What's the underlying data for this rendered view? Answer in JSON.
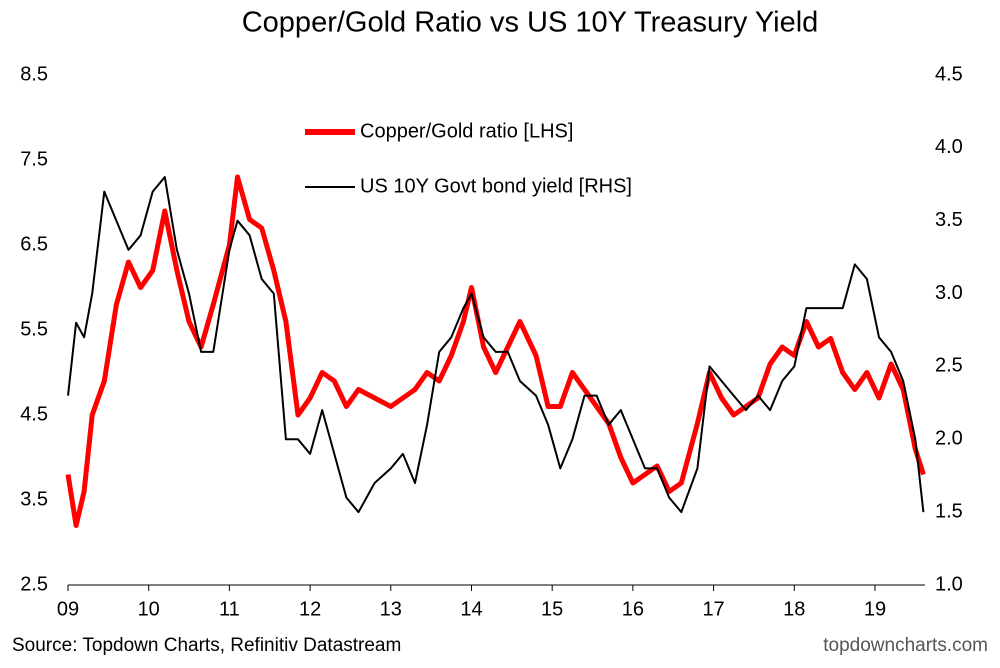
{
  "chart_data": {
    "type": "line",
    "title": "Copper/Gold Ratio vs US 10Y Treasury Yield",
    "source": "Source: Topdown Charts, Refinitiv Datastream",
    "watermark": "topdowncharts.com",
    "x": [
      2009.0,
      2009.1,
      2009.2,
      2009.3,
      2009.45,
      2009.6,
      2009.75,
      2009.9,
      2010.05,
      2010.2,
      2010.35,
      2010.5,
      2010.65,
      2010.8,
      2011.0,
      2011.1,
      2011.25,
      2011.4,
      2011.55,
      2011.7,
      2011.85,
      2012.0,
      2012.15,
      2012.3,
      2012.45,
      2012.6,
      2012.8,
      2013.0,
      2013.15,
      2013.3,
      2013.45,
      2013.6,
      2013.75,
      2013.9,
      2014.0,
      2014.15,
      2014.3,
      2014.45,
      2014.6,
      2014.8,
      2014.95,
      2015.1,
      2015.25,
      2015.4,
      2015.55,
      2015.7,
      2015.85,
      2016.0,
      2016.15,
      2016.3,
      2016.45,
      2016.6,
      2016.8,
      2016.95,
      2017.1,
      2017.25,
      2017.4,
      2017.55,
      2017.7,
      2017.85,
      2018.0,
      2018.15,
      2018.3,
      2018.45,
      2018.6,
      2018.75,
      2018.9,
      2019.05,
      2019.2,
      2019.35,
      2019.5,
      2019.6
    ],
    "series": [
      {
        "name": "Copper/Gold ratio [LHS]",
        "color": "#ff0000",
        "axis": "y",
        "values": [
          3.8,
          3.2,
          3.6,
          4.5,
          4.9,
          5.8,
          6.3,
          6.0,
          6.2,
          6.9,
          6.2,
          5.6,
          5.3,
          5.8,
          6.5,
          7.3,
          6.8,
          6.7,
          6.2,
          5.6,
          4.5,
          4.7,
          5.0,
          4.9,
          4.6,
          4.8,
          4.7,
          4.6,
          4.7,
          4.8,
          5.0,
          4.9,
          5.2,
          5.6,
          6.0,
          5.3,
          5.0,
          5.3,
          5.6,
          5.2,
          4.6,
          4.6,
          5.0,
          4.8,
          4.6,
          4.4,
          4.0,
          3.7,
          3.8,
          3.9,
          3.6,
          3.7,
          4.4,
          5.0,
          4.7,
          4.5,
          4.6,
          4.7,
          5.1,
          5.3,
          5.2,
          5.6,
          5.3,
          5.4,
          5.0,
          4.8,
          5.0,
          4.7,
          5.1,
          4.8,
          4.1,
          3.8
        ]
      },
      {
        "name": "US 10Y Govt bond yield [RHS]",
        "color": "#000000",
        "axis": "y2",
        "values": [
          2.3,
          2.8,
          2.7,
          3.0,
          3.7,
          3.5,
          3.3,
          3.4,
          3.7,
          3.8,
          3.3,
          3.0,
          2.6,
          2.6,
          3.3,
          3.5,
          3.4,
          3.1,
          3.0,
          2.0,
          2.0,
          1.9,
          2.2,
          1.9,
          1.6,
          1.5,
          1.7,
          1.8,
          1.9,
          1.7,
          2.1,
          2.6,
          2.7,
          2.9,
          3.0,
          2.7,
          2.6,
          2.6,
          2.4,
          2.3,
          2.1,
          1.8,
          2.0,
          2.3,
          2.3,
          2.1,
          2.2,
          2.0,
          1.8,
          1.8,
          1.6,
          1.5,
          1.8,
          2.5,
          2.4,
          2.3,
          2.2,
          2.3,
          2.2,
          2.4,
          2.5,
          2.9,
          2.9,
          2.9,
          2.9,
          3.2,
          3.1,
          2.7,
          2.6,
          2.4,
          2.0,
          1.5
        ]
      }
    ],
    "xlim": [
      2009,
      2019.62
    ],
    "xticks": [
      {
        "value": 2009,
        "label": "09"
      },
      {
        "value": 2010,
        "label": "10"
      },
      {
        "value": 2011,
        "label": "11"
      },
      {
        "value": 2012,
        "label": "12"
      },
      {
        "value": 2013,
        "label": "13"
      },
      {
        "value": 2014,
        "label": "14"
      },
      {
        "value": 2015,
        "label": "15"
      },
      {
        "value": 2016,
        "label": "16"
      },
      {
        "value": 2017,
        "label": "17"
      },
      {
        "value": 2018,
        "label": "18"
      },
      {
        "value": 2019,
        "label": "19"
      }
    ],
    "ylim": [
      2.5,
      8.5
    ],
    "yticks": [
      2.5,
      3.5,
      4.5,
      5.5,
      6.5,
      7.5,
      8.5
    ],
    "y2lim": [
      1,
      4.5
    ],
    "y2ticks": [
      {
        "value": 1,
        "label": "1.0"
      },
      1.5,
      {
        "value": 2,
        "label": "2.0"
      },
      2.5,
      {
        "value": 3,
        "label": "3.0"
      },
      3.5,
      {
        "value": 4,
        "label": "4.0"
      },
      4.5
    ],
    "grid": false,
    "legend": "top"
  }
}
